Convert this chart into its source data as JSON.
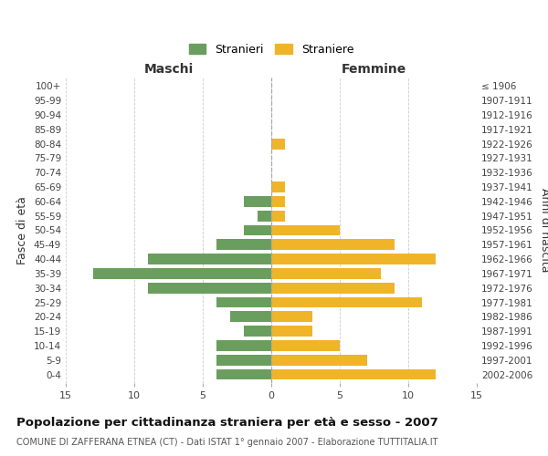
{
  "age_groups": [
    "0-4",
    "5-9",
    "10-14",
    "15-19",
    "20-24",
    "25-29",
    "30-34",
    "35-39",
    "40-44",
    "45-49",
    "50-54",
    "55-59",
    "60-64",
    "65-69",
    "70-74",
    "75-79",
    "80-84",
    "85-89",
    "90-94",
    "95-99",
    "100+"
  ],
  "birth_years": [
    "2002-2006",
    "1997-2001",
    "1992-1996",
    "1987-1991",
    "1982-1986",
    "1977-1981",
    "1972-1976",
    "1967-1971",
    "1962-1966",
    "1957-1961",
    "1952-1956",
    "1947-1951",
    "1942-1946",
    "1937-1941",
    "1932-1936",
    "1927-1931",
    "1922-1926",
    "1917-1921",
    "1912-1916",
    "1907-1911",
    "≤ 1906"
  ],
  "maschi": [
    4,
    4,
    4,
    2,
    3,
    4,
    9,
    13,
    9,
    4,
    2,
    1,
    2,
    0,
    0,
    0,
    0,
    0,
    0,
    0,
    0
  ],
  "femmine": [
    12,
    7,
    5,
    3,
    3,
    11,
    9,
    8,
    12,
    9,
    5,
    1,
    1,
    1,
    0,
    0,
    1,
    0,
    0,
    0,
    0
  ],
  "male_color": "#6a9e5e",
  "female_color": "#f0b429",
  "title": "Popolazione per cittadinanza straniera per età e sesso - 2007",
  "subtitle": "COMUNE DI ZAFFERANA ETNEA (CT) - Dati ISTAT 1° gennaio 2007 - Elaborazione TUTTITALIA.IT",
  "xlabel_left": "Maschi",
  "xlabel_right": "Femmine",
  "ylabel_left": "Fasce di età",
  "ylabel_right": "Anni di nascita",
  "legend_male": "Stranieri",
  "legend_female": "Straniere",
  "xlim": 15,
  "background_color": "#ffffff",
  "grid_color": "#cccccc"
}
